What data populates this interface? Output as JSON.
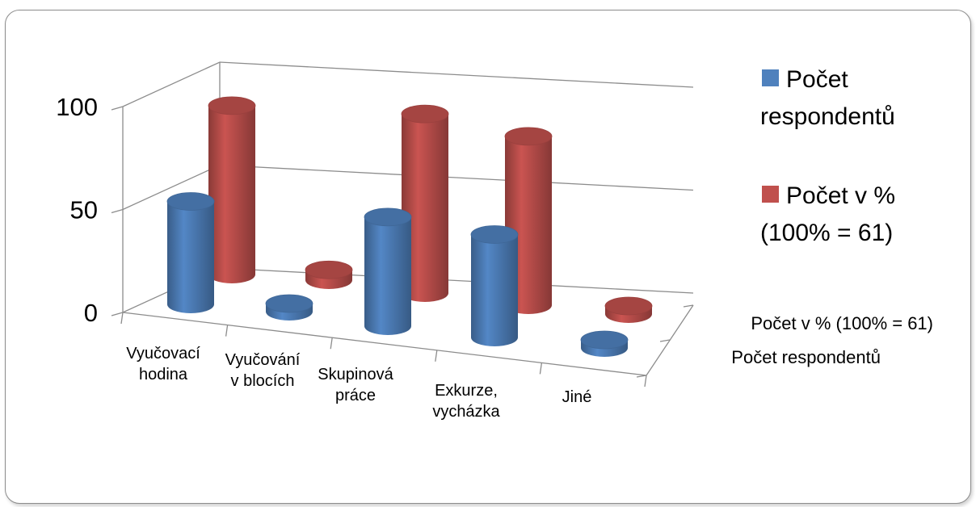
{
  "chart_data": {
    "type": "bar",
    "subtype": "3d-cylinder",
    "title": "",
    "categories": [
      [
        "Vyučovací",
        "hodina"
      ],
      [
        "Vyučování",
        "v blocích"
      ],
      [
        "Skupinová",
        "práce"
      ],
      [
        "Exkurze,",
        "vycházka"
      ],
      [
        "Jiné"
      ]
    ],
    "series": [
      {
        "name": "Počet respondentů",
        "legend_lines": [
          "Počet",
          "respondentů"
        ],
        "color": "#4f81bd",
        "values": [
          50,
          3,
          53,
          50,
          2
        ]
      },
      {
        "name": "Počet v % (100% = 61)",
        "legend_lines": [
          "Počet v %",
          "(100% = 61)"
        ],
        "color": "#c0504d",
        "values": [
          82,
          5,
          87,
          82,
          3
        ]
      }
    ],
    "y_ticks": [
      "0",
      "50",
      "100"
    ],
    "ylim": [
      0,
      100
    ],
    "grid": true,
    "legend_position": "right"
  }
}
